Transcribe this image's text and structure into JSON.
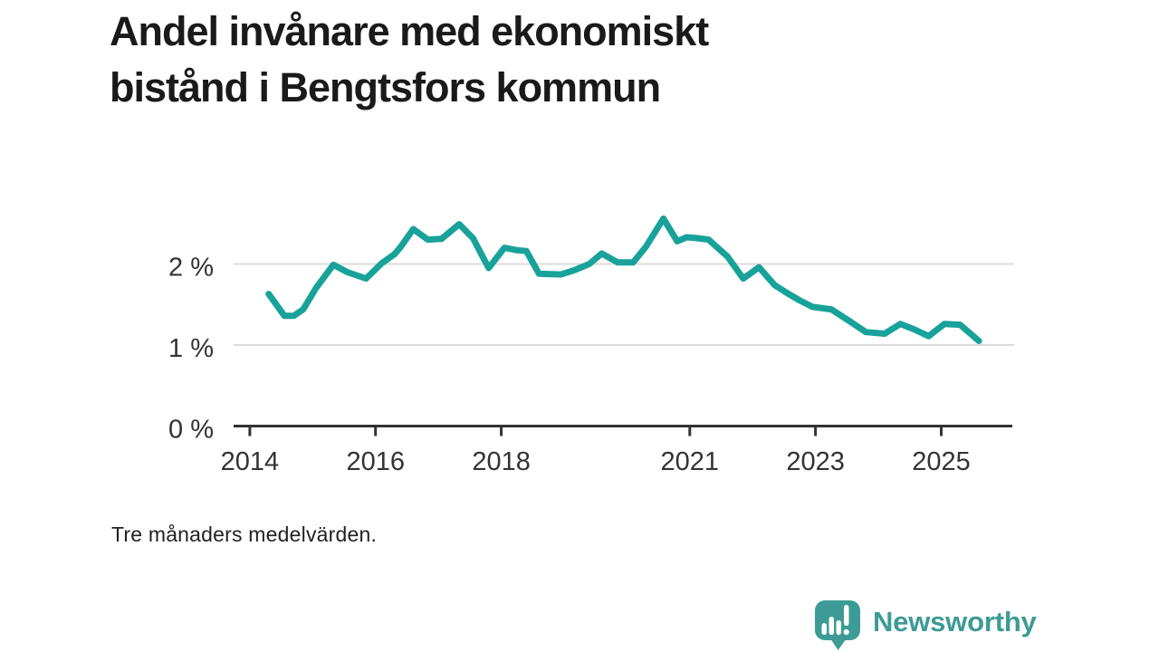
{
  "header": {
    "title": "Andel invånare med ekonomiskt bistånd i Bengtsfors kommun",
    "title_lines": [
      "Andel invånare med ekonomiskt",
      "bistånd i Bengtsfors kommun"
    ]
  },
  "footnote": "Tre månaders medelvärden.",
  "branding": {
    "name": "Newsworthy",
    "icon": "bar-chart-speech-bubble-icon",
    "color": "#3D9B95"
  },
  "chart_data": {
    "type": "line",
    "title": "Andel invånare med ekonomiskt bistånd i Bengtsfors kommun",
    "note": "Tre månaders medelvärden.",
    "unit": "%",
    "grid": "horizontal",
    "legend": "none",
    "x_range": [
      2013.67,
      2026.16
    ],
    "y_range": [
      0,
      2.9
    ],
    "x_ticks": [
      2014,
      2016,
      2018,
      2021,
      2023,
      2025
    ],
    "y_ticks": [
      {
        "value": 0,
        "label": "0 %"
      },
      {
        "value": 1,
        "label": "1 %"
      },
      {
        "value": 2,
        "label": "2 %"
      }
    ],
    "colors": {
      "line": "#18A29A",
      "grid": "#DCDCDC",
      "axis": "#333333",
      "tick_text": "#333333"
    },
    "series": [
      {
        "name": "Andel invånare med ekonomiskt bistånd",
        "color": "#18A29A",
        "points": [
          [
            2014.3,
            1.63
          ],
          [
            2014.55,
            1.36
          ],
          [
            2014.7,
            1.36
          ],
          [
            2014.85,
            1.44
          ],
          [
            2015.05,
            1.7
          ],
          [
            2015.33,
            1.99
          ],
          [
            2015.55,
            1.9
          ],
          [
            2015.85,
            1.82
          ],
          [
            2016.1,
            2.01
          ],
          [
            2016.3,
            2.12
          ],
          [
            2016.4,
            2.21
          ],
          [
            2016.6,
            2.43
          ],
          [
            2016.83,
            2.3
          ],
          [
            2017.05,
            2.31
          ],
          [
            2017.33,
            2.49
          ],
          [
            2017.55,
            2.32
          ],
          [
            2017.8,
            1.95
          ],
          [
            2018.05,
            2.2
          ],
          [
            2018.25,
            2.17
          ],
          [
            2018.4,
            2.16
          ],
          [
            2018.6,
            1.88
          ],
          [
            2018.95,
            1.87
          ],
          [
            2019.15,
            1.92
          ],
          [
            2019.4,
            2.0
          ],
          [
            2019.6,
            2.13
          ],
          [
            2019.85,
            2.02
          ],
          [
            2020.1,
            2.02
          ],
          [
            2020.3,
            2.21
          ],
          [
            2020.58,
            2.56
          ],
          [
            2020.8,
            2.28
          ],
          [
            2020.95,
            2.33
          ],
          [
            2021.1,
            2.32
          ],
          [
            2021.3,
            2.3
          ],
          [
            2021.6,
            2.09
          ],
          [
            2021.85,
            1.82
          ],
          [
            2022.1,
            1.96
          ],
          [
            2022.35,
            1.74
          ],
          [
            2022.55,
            1.64
          ],
          [
            2022.75,
            1.55
          ],
          [
            2022.95,
            1.47
          ],
          [
            2023.25,
            1.44
          ],
          [
            2023.55,
            1.29
          ],
          [
            2023.8,
            1.16
          ],
          [
            2024.1,
            1.14
          ],
          [
            2024.35,
            1.26
          ],
          [
            2024.55,
            1.2
          ],
          [
            2024.8,
            1.11
          ],
          [
            2025.05,
            1.26
          ],
          [
            2025.3,
            1.25
          ],
          [
            2025.6,
            1.05
          ]
        ]
      }
    ]
  }
}
